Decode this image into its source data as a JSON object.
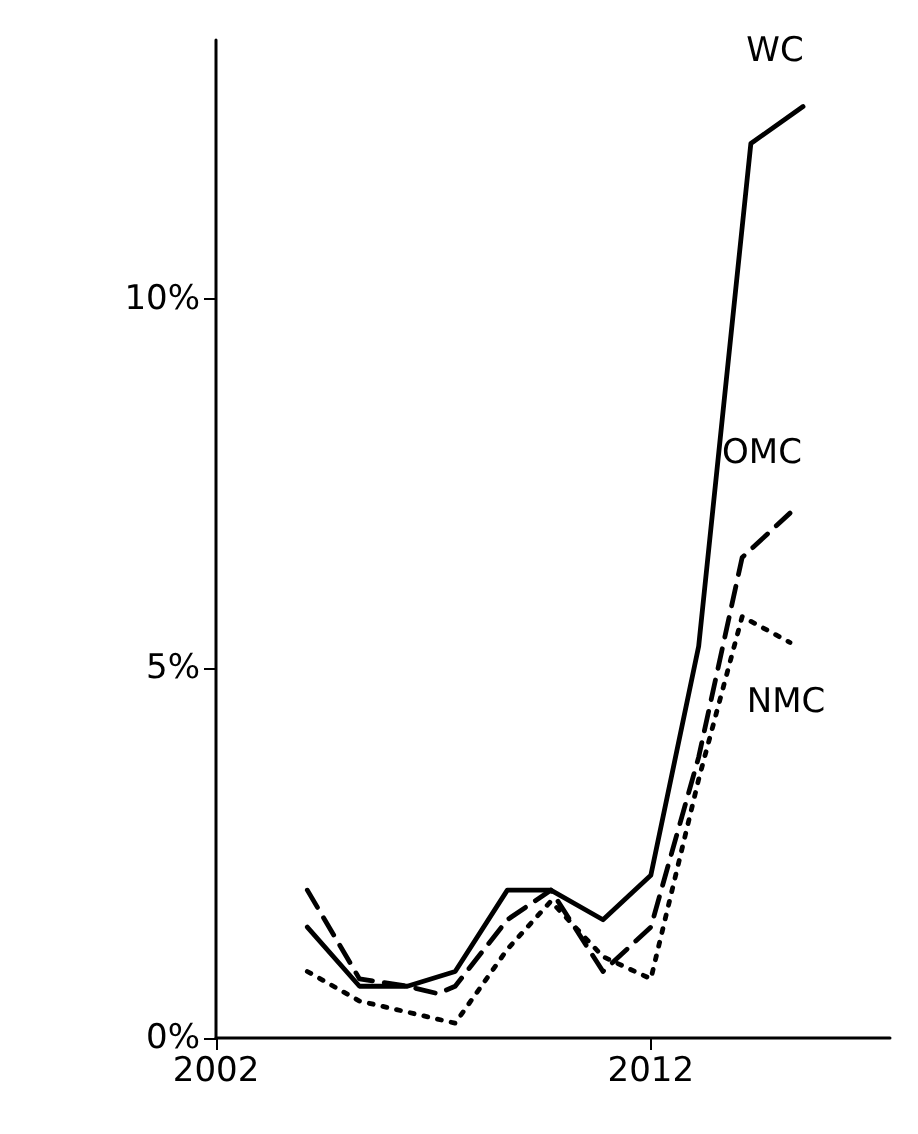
{
  "chart_data": {
    "type": "line",
    "xlim": [
      2002,
      2017.5
    ],
    "xticks": [
      2002,
      2012
    ],
    "ylim": [
      0,
      13.5
    ],
    "yticks": [
      {
        "value": 0,
        "label": "0%"
      },
      {
        "value": 5,
        "label": "5%"
      },
      {
        "value": 10,
        "label": "10%"
      }
    ],
    "grid": false,
    "legend": false,
    "marker": "none",
    "series": [
      {
        "name": "WC",
        "color": "#000000",
        "line_style": "solid",
        "x": [
          2004.1,
          2005.3,
          2006.4,
          2007.5,
          2008.7,
          2009.7,
          2010.9,
          2012,
          2013.1,
          2014.3,
          2015.5
        ],
        "values": [
          1.5,
          0.7,
          0.7,
          0.9,
          2,
          2,
          1.6,
          2.2,
          5.3,
          12.1,
          12.6
        ]
      },
      {
        "name": "OMC",
        "color": "#000000",
        "line_style": "dashed",
        "x": [
          2004.1,
          2005.3,
          2006.4,
          2007.1,
          2007.5,
          2008.7,
          2009.7,
          2010.9,
          2012,
          2013.1,
          2014.1,
          2015.2
        ],
        "values": [
          2,
          0.8,
          0.7,
          0.6,
          0.7,
          1.6,
          2,
          0.9,
          1.5,
          3.8,
          6.5,
          7.1
        ]
      },
      {
        "name": "NMC",
        "color": "#000000",
        "line_style": "dotted",
        "x": [
          2004.1,
          2005.3,
          2006.4,
          2007.5,
          2008.7,
          2009.7,
          2010.9,
          2012,
          2013.1,
          2014.1,
          2015.2
        ],
        "values": [
          0.9,
          0.5,
          0.35,
          0.2,
          1.2,
          1.85,
          1.1,
          0.8,
          3.5,
          5.7,
          5.35
        ]
      }
    ]
  }
}
